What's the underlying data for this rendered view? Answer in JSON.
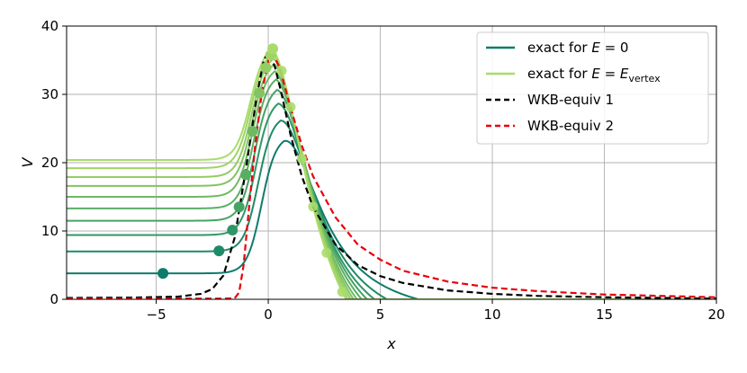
{
  "chart_data": {
    "type": "line",
    "title": "",
    "xlabel": "x",
    "ylabel": "V",
    "xlim": [
      -9,
      20
    ],
    "ylim": [
      0,
      40
    ],
    "x_ticks": [
      -5,
      0,
      5,
      10,
      15,
      20
    ],
    "y_ticks": [
      0,
      10,
      20,
      30,
      40
    ],
    "grid": true,
    "legend_position": "top-right",
    "legend": [
      {
        "prefix": "exact for ",
        "var": "E",
        "eq": " = ",
        "value": "0",
        "sub": "",
        "color": "#0f7b6c",
        "style": "solid"
      },
      {
        "prefix": "exact for ",
        "var": "E",
        "eq": " = ",
        "value": "E",
        "sub": "vertex",
        "color": "#a8dc6a",
        "style": "solid"
      },
      {
        "prefix": "WKB-equiv 1",
        "var": "",
        "eq": "",
        "value": "",
        "sub": "",
        "color": "#000000",
        "style": "dashed"
      },
      {
        "prefix": "WKB-equiv 2",
        "var": "",
        "eq": "",
        "value": "",
        "sub": "",
        "color": "#e8000b",
        "style": "dashed"
      }
    ],
    "family": {
      "description_note": "",
      "curves": [
        {
          "plateau": 3.8,
          "peak": 24.0,
          "peak_x": 0.7,
          "color": "#0f7b6c",
          "marker_x": -4.7
        },
        {
          "plateau": 7.0,
          "peak": 27.0,
          "peak_x": 0.55,
          "color": "#1f8a68",
          "marker_x": -2.2
        },
        {
          "plateau": 9.4,
          "peak": 29.5,
          "peak_x": 0.45,
          "color": "#2f9766",
          "marker_x": -1.6
        },
        {
          "plateau": 11.5,
          "peak": 31.5,
          "peak_x": 0.4,
          "color": "#45a364",
          "marker_x": -1.3
        },
        {
          "plateau": 13.3,
          "peak": 33.0,
          "peak_x": 0.35,
          "color": "#5aae63",
          "marker_x": -1.0
        },
        {
          "plateau": 15.0,
          "peak": 34.2,
          "peak_x": 0.3,
          "color": "#6fb962",
          "marker_x": -0.7
        },
        {
          "plateau": 16.6,
          "peak": 35.2,
          "peak_x": 0.28,
          "color": "#82c362",
          "marker_x": -0.4
        },
        {
          "plateau": 17.9,
          "peak": 36.0,
          "peak_x": 0.25,
          "color": "#93cc63",
          "marker_x": -0.1
        },
        {
          "plateau": 19.2,
          "peak": 36.8,
          "peak_x": 0.22,
          "color": "#9fd465",
          "marker_x": 0.1
        },
        {
          "plateau": 20.4,
          "peak": 37.4,
          "peak_x": 0.2,
          "color": "#a8dc6a",
          "marker_x": 0.2
        }
      ]
    },
    "series": [
      {
        "name": "WKB-equiv 1",
        "color": "#000000",
        "dashed": true,
        "x": [
          -9,
          -6,
          -4,
          -3,
          -2.5,
          -2,
          -1.5,
          -1,
          -0.5,
          -0.2,
          0,
          0.3,
          0.6,
          1,
          1.5,
          2,
          3,
          4,
          5,
          6,
          8,
          10,
          12,
          15,
          20
        ],
        "y": [
          0.2,
          0.25,
          0.4,
          0.8,
          1.5,
          3.5,
          9,
          19,
          30,
          35,
          36.2,
          34,
          30,
          24,
          18,
          13.5,
          8,
          5,
          3.4,
          2.4,
          1.3,
          0.8,
          0.5,
          0.3,
          0.1
        ]
      },
      {
        "name": "WKB-equiv 2",
        "color": "#e8000b",
        "dashed": true,
        "x": [
          -9,
          -5,
          -2,
          -1.5,
          -1.3,
          -1.1,
          -0.9,
          -0.6,
          -0.3,
          0,
          0.2,
          0.5,
          1,
          1.5,
          2,
          3,
          4,
          5,
          6,
          8,
          10,
          12,
          15,
          20
        ],
        "y": [
          0.1,
          0.1,
          0.1,
          0.15,
          1,
          5,
          12,
          22,
          30,
          35,
          36,
          34,
          28,
          22.5,
          18,
          12,
          8,
          5.8,
          4.2,
          2.6,
          1.7,
          1.2,
          0.7,
          0.3
        ]
      }
    ]
  }
}
